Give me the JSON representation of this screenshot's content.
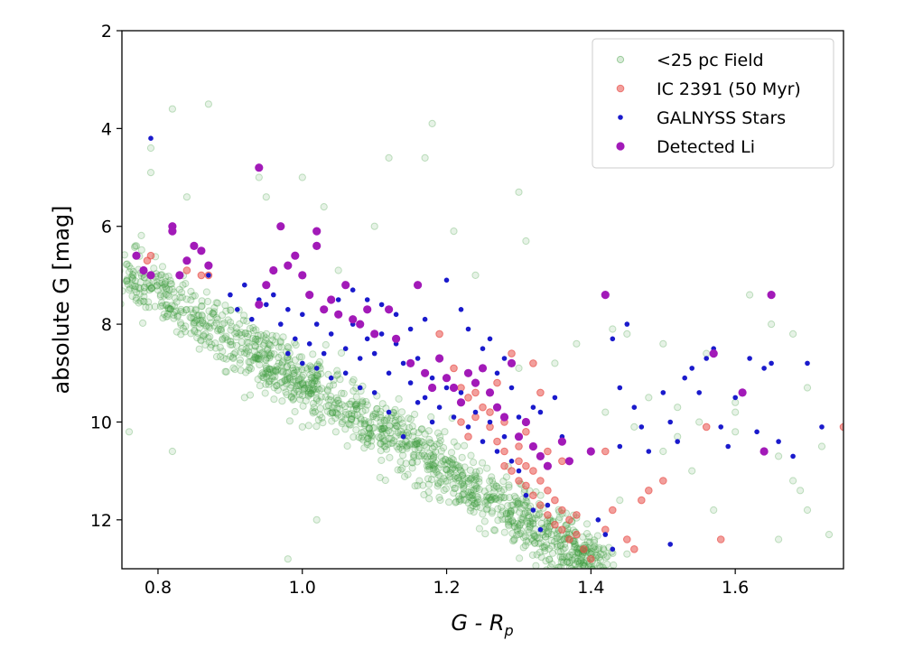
{
  "chart_data": {
    "type": "scatter",
    "xlabel": "G - R",
    "xlabel_sub": "p",
    "ylabel": "absolute G [mag]",
    "xlim": [
      0.75,
      1.75
    ],
    "ylim": [
      13,
      2
    ],
    "y_inverted": true,
    "x_ticks": [
      "0.8",
      "1.0",
      "1.2",
      "1.4",
      "1.6"
    ],
    "y_ticks": [
      "2",
      "4",
      "6",
      "8",
      "10",
      "12"
    ],
    "grid": false,
    "legend_position": "top-right",
    "series": [
      {
        "name": "<25 pc Field",
        "color": "#3a9a3a",
        "marker": "open-circle-translucent",
        "description_of_distribution": "dense main-sequence band",
        "band": {
          "x_start": 0.75,
          "y_start": 6.9,
          "x_end": 1.42,
          "y_end": 13.0,
          "spread_mag": 0.55,
          "count": 1400
        },
        "points": [
          [
            0.82,
            3.6
          ],
          [
            0.87,
            3.5
          ],
          [
            0.79,
            4.4
          ],
          [
            0.79,
            4.9
          ],
          [
            0.77,
            6.4
          ],
          [
            0.84,
            5.4
          ],
          [
            0.94,
            5.0
          ],
          [
            0.95,
            5.4
          ],
          [
            1.0,
            5.0
          ],
          [
            1.03,
            5.6
          ],
          [
            1.1,
            6.0
          ],
          [
            1.12,
            4.6
          ],
          [
            1.18,
            3.9
          ],
          [
            1.17,
            4.6
          ],
          [
            1.21,
            6.1
          ],
          [
            1.3,
            5.3
          ],
          [
            1.31,
            6.3
          ],
          [
            1.05,
            6.9
          ],
          [
            1.24,
            7.0
          ],
          [
            1.38,
            8.4
          ],
          [
            1.43,
            8.1
          ],
          [
            1.45,
            8.2
          ],
          [
            1.5,
            8.4
          ],
          [
            1.56,
            8.6
          ],
          [
            1.62,
            7.4
          ],
          [
            1.65,
            8.0
          ],
          [
            1.68,
            8.2
          ],
          [
            1.7,
            9.3
          ],
          [
            1.6,
            9.8
          ],
          [
            1.55,
            10.0
          ],
          [
            1.5,
            10.6
          ],
          [
            1.52,
            10.3
          ],
          [
            1.6,
            10.2
          ],
          [
            1.66,
            10.7
          ],
          [
            1.68,
            11.2
          ],
          [
            1.69,
            11.4
          ],
          [
            1.72,
            10.5
          ],
          [
            1.73,
            12.3
          ],
          [
            1.66,
            12.4
          ],
          [
            1.7,
            11.8
          ],
          [
            1.57,
            11.8
          ],
          [
            1.54,
            11.0
          ],
          [
            1.46,
            10.1
          ],
          [
            1.42,
            9.8
          ],
          [
            1.44,
            11.6
          ],
          [
            0.76,
            10.2
          ],
          [
            0.82,
            10.6
          ],
          [
            0.92,
            9.5
          ],
          [
            0.97,
            9.2
          ],
          [
            1.0,
            10.1
          ],
          [
            1.02,
            12.0
          ],
          [
            0.98,
            12.8
          ],
          [
            1.48,
            9.5
          ],
          [
            1.52,
            9.7
          ],
          [
            1.6,
            9.6
          ],
          [
            1.64,
            10.6
          ],
          [
            1.41,
            12.6
          ],
          [
            1.45,
            12.7
          ],
          [
            1.35,
            8.8
          ],
          [
            1.3,
            8.9
          ]
        ]
      },
      {
        "name": "IC 2391 (50 Myr)",
        "color": "#e8504a",
        "marker": "circle-translucent",
        "points": [
          [
            0.785,
            6.7
          ],
          [
            0.79,
            6.6
          ],
          [
            0.84,
            6.9
          ],
          [
            0.86,
            7.0
          ],
          [
            0.87,
            7.0
          ],
          [
            1.19,
            8.2
          ],
          [
            1.22,
            9.3
          ],
          [
            1.22,
            9.6
          ],
          [
            1.23,
            9.5
          ],
          [
            1.24,
            9.9
          ],
          [
            1.22,
            10.0
          ],
          [
            1.23,
            10.3
          ],
          [
            1.24,
            9.4
          ],
          [
            1.25,
            9.7
          ],
          [
            1.26,
            9.8
          ],
          [
            1.26,
            10.1
          ],
          [
            1.27,
            10.4
          ],
          [
            1.28,
            10.6
          ],
          [
            1.28,
            10.9
          ],
          [
            1.29,
            11.0
          ],
          [
            1.3,
            10.8
          ],
          [
            1.3,
            11.2
          ],
          [
            1.31,
            10.9
          ],
          [
            1.31,
            11.3
          ],
          [
            1.32,
            11.0
          ],
          [
            1.32,
            11.5
          ],
          [
            1.33,
            11.2
          ],
          [
            1.33,
            11.7
          ],
          [
            1.34,
            11.4
          ],
          [
            1.34,
            11.9
          ],
          [
            1.35,
            11.6
          ],
          [
            1.35,
            12.1
          ],
          [
            1.36,
            11.8
          ],
          [
            1.36,
            12.2
          ],
          [
            1.37,
            12.0
          ],
          [
            1.37,
            12.4
          ],
          [
            1.38,
            12.3
          ],
          [
            1.38,
            11.9
          ],
          [
            1.39,
            12.6
          ],
          [
            1.4,
            12.8
          ],
          [
            1.29,
            8.6
          ],
          [
            1.32,
            8.8
          ],
          [
            1.33,
            9.4
          ],
          [
            1.3,
            10.5
          ],
          [
            1.31,
            10.2
          ],
          [
            1.28,
            10.0
          ],
          [
            1.27,
            9.2
          ],
          [
            1.21,
            8.9
          ],
          [
            1.42,
            10.6
          ],
          [
            1.43,
            11.8
          ],
          [
            1.45,
            12.4
          ],
          [
            1.46,
            12.6
          ],
          [
            1.47,
            11.6
          ],
          [
            1.48,
            11.4
          ],
          [
            1.5,
            11.2
          ],
          [
            1.56,
            10.1
          ],
          [
            1.58,
            12.4
          ],
          [
            1.75,
            10.1
          ],
          [
            1.42,
            12.2
          ],
          [
            1.36,
            10.8
          ],
          [
            1.34,
            10.6
          ]
        ]
      },
      {
        "name": "GALNYSS Stars",
        "color": "#1a1acc",
        "marker": "small-dot",
        "points": [
          [
            0.79,
            4.2
          ],
          [
            0.87,
            7.0
          ],
          [
            0.9,
            7.4
          ],
          [
            0.91,
            7.7
          ],
          [
            0.92,
            7.2
          ],
          [
            0.93,
            7.9
          ],
          [
            0.94,
            7.5
          ],
          [
            0.95,
            7.6
          ],
          [
            0.96,
            7.4
          ],
          [
            0.97,
            8.0
          ],
          [
            0.98,
            7.7
          ],
          [
            0.99,
            8.3
          ],
          [
            1.0,
            7.8
          ],
          [
            1.01,
            8.4
          ],
          [
            1.02,
            8.0
          ],
          [
            1.03,
            8.6
          ],
          [
            1.04,
            8.2
          ],
          [
            1.05,
            7.5
          ],
          [
            1.06,
            8.5
          ],
          [
            1.07,
            8.0
          ],
          [
            1.08,
            8.7
          ],
          [
            1.09,
            8.3
          ],
          [
            1.1,
            8.6
          ],
          [
            1.11,
            8.2
          ],
          [
            1.12,
            9.0
          ],
          [
            1.13,
            8.4
          ],
          [
            1.14,
            8.8
          ],
          [
            1.15,
            9.2
          ],
          [
            1.16,
            8.7
          ],
          [
            1.17,
            9.5
          ],
          [
            1.18,
            9.1
          ],
          [
            1.19,
            9.7
          ],
          [
            1.2,
            9.3
          ],
          [
            1.21,
            9.9
          ],
          [
            1.22,
            9.4
          ],
          [
            1.23,
            10.1
          ],
          [
            1.24,
            9.8
          ],
          [
            1.25,
            10.4
          ],
          [
            1.26,
            10.0
          ],
          [
            1.27,
            10.6
          ],
          [
            1.28,
            10.3
          ],
          [
            1.29,
            10.8
          ],
          [
            1.3,
            11.0
          ],
          [
            1.31,
            11.5
          ],
          [
            1.32,
            11.8
          ],
          [
            1.33,
            12.2
          ],
          [
            1.34,
            11.7
          ],
          [
            1.3,
            9.9
          ],
          [
            1.28,
            8.7
          ],
          [
            1.26,
            8.3
          ],
          [
            1.25,
            8.5
          ],
          [
            1.23,
            8.1
          ],
          [
            1.2,
            7.1
          ],
          [
            1.22,
            7.7
          ],
          [
            1.27,
            9.0
          ],
          [
            1.29,
            9.3
          ],
          [
            1.33,
            9.8
          ],
          [
            1.36,
            10.3
          ],
          [
            1.35,
            9.5
          ],
          [
            1.32,
            9.7
          ],
          [
            1.18,
            10.0
          ],
          [
            1.16,
            9.6
          ],
          [
            1.14,
            10.3
          ],
          [
            1.12,
            9.8
          ],
          [
            1.1,
            9.4
          ],
          [
            1.08,
            9.3
          ],
          [
            1.06,
            9.0
          ],
          [
            1.04,
            9.1
          ],
          [
            1.02,
            8.9
          ],
          [
            1.0,
            8.8
          ],
          [
            0.98,
            8.6
          ],
          [
            1.13,
            7.8
          ],
          [
            1.15,
            8.1
          ],
          [
            1.17,
            7.9
          ],
          [
            1.11,
            7.6
          ],
          [
            1.09,
            7.5
          ],
          [
            1.07,
            7.3
          ],
          [
            1.41,
            12.0
          ],
          [
            1.42,
            12.3
          ],
          [
            1.43,
            12.6
          ],
          [
            1.44,
            9.3
          ],
          [
            1.46,
            9.7
          ],
          [
            1.47,
            10.1
          ],
          [
            1.48,
            10.6
          ],
          [
            1.5,
            9.4
          ],
          [
            1.51,
            10.0
          ],
          [
            1.52,
            10.4
          ],
          [
            1.53,
            9.1
          ],
          [
            1.54,
            8.9
          ],
          [
            1.55,
            9.4
          ],
          [
            1.56,
            8.7
          ],
          [
            1.57,
            8.5
          ],
          [
            1.58,
            10.1
          ],
          [
            1.59,
            10.5
          ],
          [
            1.6,
            9.5
          ],
          [
            1.62,
            8.7
          ],
          [
            1.63,
            10.2
          ],
          [
            1.64,
            8.9
          ],
          [
            1.65,
            8.8
          ],
          [
            1.66,
            10.4
          ],
          [
            1.68,
            10.7
          ],
          [
            1.7,
            8.8
          ],
          [
            1.72,
            10.1
          ],
          [
            1.43,
            8.3
          ],
          [
            1.45,
            8.0
          ],
          [
            1.51,
            12.5
          ],
          [
            1.44,
            10.5
          ]
        ]
      },
      {
        "name": "Detected Li",
        "color": "#a21ab8",
        "marker": "large-dot",
        "points": [
          [
            0.77,
            6.6
          ],
          [
            0.78,
            6.9
          ],
          [
            0.79,
            7.0
          ],
          [
            0.82,
            6.0
          ],
          [
            0.82,
            6.1
          ],
          [
            0.83,
            7.0
          ],
          [
            0.84,
            6.7
          ],
          [
            0.85,
            6.4
          ],
          [
            0.86,
            6.5
          ],
          [
            0.87,
            6.8
          ],
          [
            0.94,
            4.8
          ],
          [
            0.94,
            7.6
          ],
          [
            0.95,
            7.2
          ],
          [
            0.96,
            6.9
          ],
          [
            0.97,
            6.0
          ],
          [
            0.98,
            6.8
          ],
          [
            0.99,
            6.6
          ],
          [
            1.0,
            7.0
          ],
          [
            1.01,
            7.4
          ],
          [
            1.02,
            6.1
          ],
          [
            1.02,
            6.4
          ],
          [
            1.03,
            7.7
          ],
          [
            1.04,
            7.5
          ],
          [
            1.05,
            7.8
          ],
          [
            1.06,
            7.2
          ],
          [
            1.07,
            7.9
          ],
          [
            1.08,
            8.0
          ],
          [
            1.09,
            7.7
          ],
          [
            1.1,
            8.2
          ],
          [
            1.12,
            7.7
          ],
          [
            1.13,
            8.3
          ],
          [
            1.15,
            8.8
          ],
          [
            1.16,
            7.2
          ],
          [
            1.17,
            9.0
          ],
          [
            1.18,
            9.3
          ],
          [
            1.19,
            8.7
          ],
          [
            1.2,
            9.1
          ],
          [
            1.21,
            9.3
          ],
          [
            1.22,
            9.6
          ],
          [
            1.23,
            9.0
          ],
          [
            1.24,
            9.2
          ],
          [
            1.25,
            8.9
          ],
          [
            1.26,
            9.4
          ],
          [
            1.27,
            9.7
          ],
          [
            1.28,
            9.9
          ],
          [
            1.29,
            8.8
          ],
          [
            1.3,
            10.3
          ],
          [
            1.31,
            10.0
          ],
          [
            1.32,
            10.5
          ],
          [
            1.33,
            10.7
          ],
          [
            1.34,
            10.9
          ],
          [
            1.36,
            10.4
          ],
          [
            1.37,
            10.8
          ],
          [
            1.4,
            10.6
          ],
          [
            1.42,
            7.4
          ],
          [
            1.57,
            8.6
          ],
          [
            1.61,
            9.4
          ],
          [
            1.64,
            10.6
          ],
          [
            1.65,
            7.4
          ]
        ]
      }
    ]
  }
}
